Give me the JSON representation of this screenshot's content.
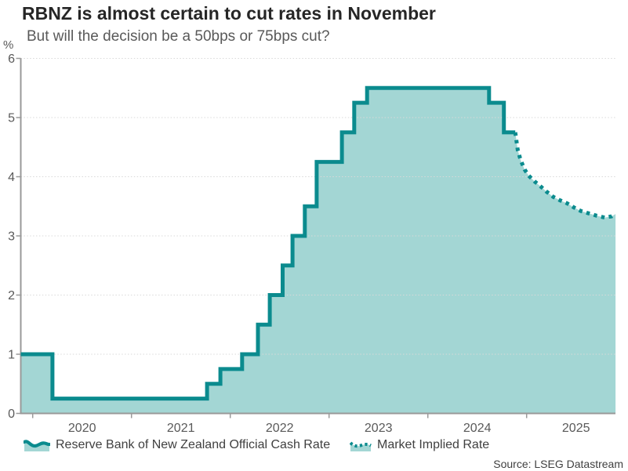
{
  "header": {
    "unit_label": "%"
  },
  "source": "Source: LSEG Datastream",
  "colors": {
    "line_teal": "#0b8b8e",
    "fill_teal": "#a3d6d4",
    "axis_gray": "#999999",
    "grid_gray": "#d9d9d9",
    "title_text": "#262626",
    "muted_text": "#595959",
    "label_text": "#404040"
  },
  "chart_data": {
    "type": "area",
    "title": "RBNZ is almost certain to cut rates in November",
    "subtitle": "But will the decision be a 50bps or 75bps cut?",
    "unit_label": "%",
    "ylim": [
      0,
      6
    ],
    "yticks": [
      0,
      1,
      2,
      3,
      4,
      5,
      6
    ],
    "x_years": [
      2020,
      2021,
      2022,
      2023,
      2024,
      2025
    ],
    "xlim": [
      2019.879,
      2025.9
    ],
    "grid": "horizontal-dotted",
    "legend_position": "bottom",
    "series": [
      {
        "name": "Reserve Bank of New Zealand Official Cash Rate",
        "type": "step-area",
        "line_style": "solid",
        "points": [
          [
            2019.879,
            1.0
          ],
          [
            2020.2,
            0.25
          ],
          [
            2021.765,
            0.5
          ],
          [
            2021.9,
            0.75
          ],
          [
            2022.12,
            1.0
          ],
          [
            2022.28,
            1.5
          ],
          [
            2022.4,
            2.0
          ],
          [
            2022.53,
            2.5
          ],
          [
            2022.63,
            3.0
          ],
          [
            2022.755,
            3.5
          ],
          [
            2022.875,
            4.25
          ],
          [
            2023.13,
            4.75
          ],
          [
            2023.255,
            5.25
          ],
          [
            2023.385,
            5.5
          ],
          [
            2024.62,
            5.25
          ],
          [
            2024.77,
            4.75
          ],
          [
            2024.885,
            4.75
          ]
        ]
      },
      {
        "name": "Market Implied Rate",
        "type": "line-area",
        "line_style": "dotted",
        "points": [
          [
            2024.885,
            4.75
          ],
          [
            2024.91,
            4.45
          ],
          [
            2024.94,
            4.28
          ],
          [
            2024.98,
            4.12
          ],
          [
            2025.02,
            4.02
          ],
          [
            2025.08,
            3.92
          ],
          [
            2025.14,
            3.84
          ],
          [
            2025.2,
            3.75
          ],
          [
            2025.27,
            3.66
          ],
          [
            2025.34,
            3.6
          ],
          [
            2025.41,
            3.55
          ],
          [
            2025.48,
            3.48
          ],
          [
            2025.55,
            3.42
          ],
          [
            2025.63,
            3.38
          ],
          [
            2025.71,
            3.34
          ],
          [
            2025.79,
            3.31
          ],
          [
            2025.86,
            3.33
          ],
          [
            2025.9,
            3.37
          ]
        ]
      }
    ]
  }
}
